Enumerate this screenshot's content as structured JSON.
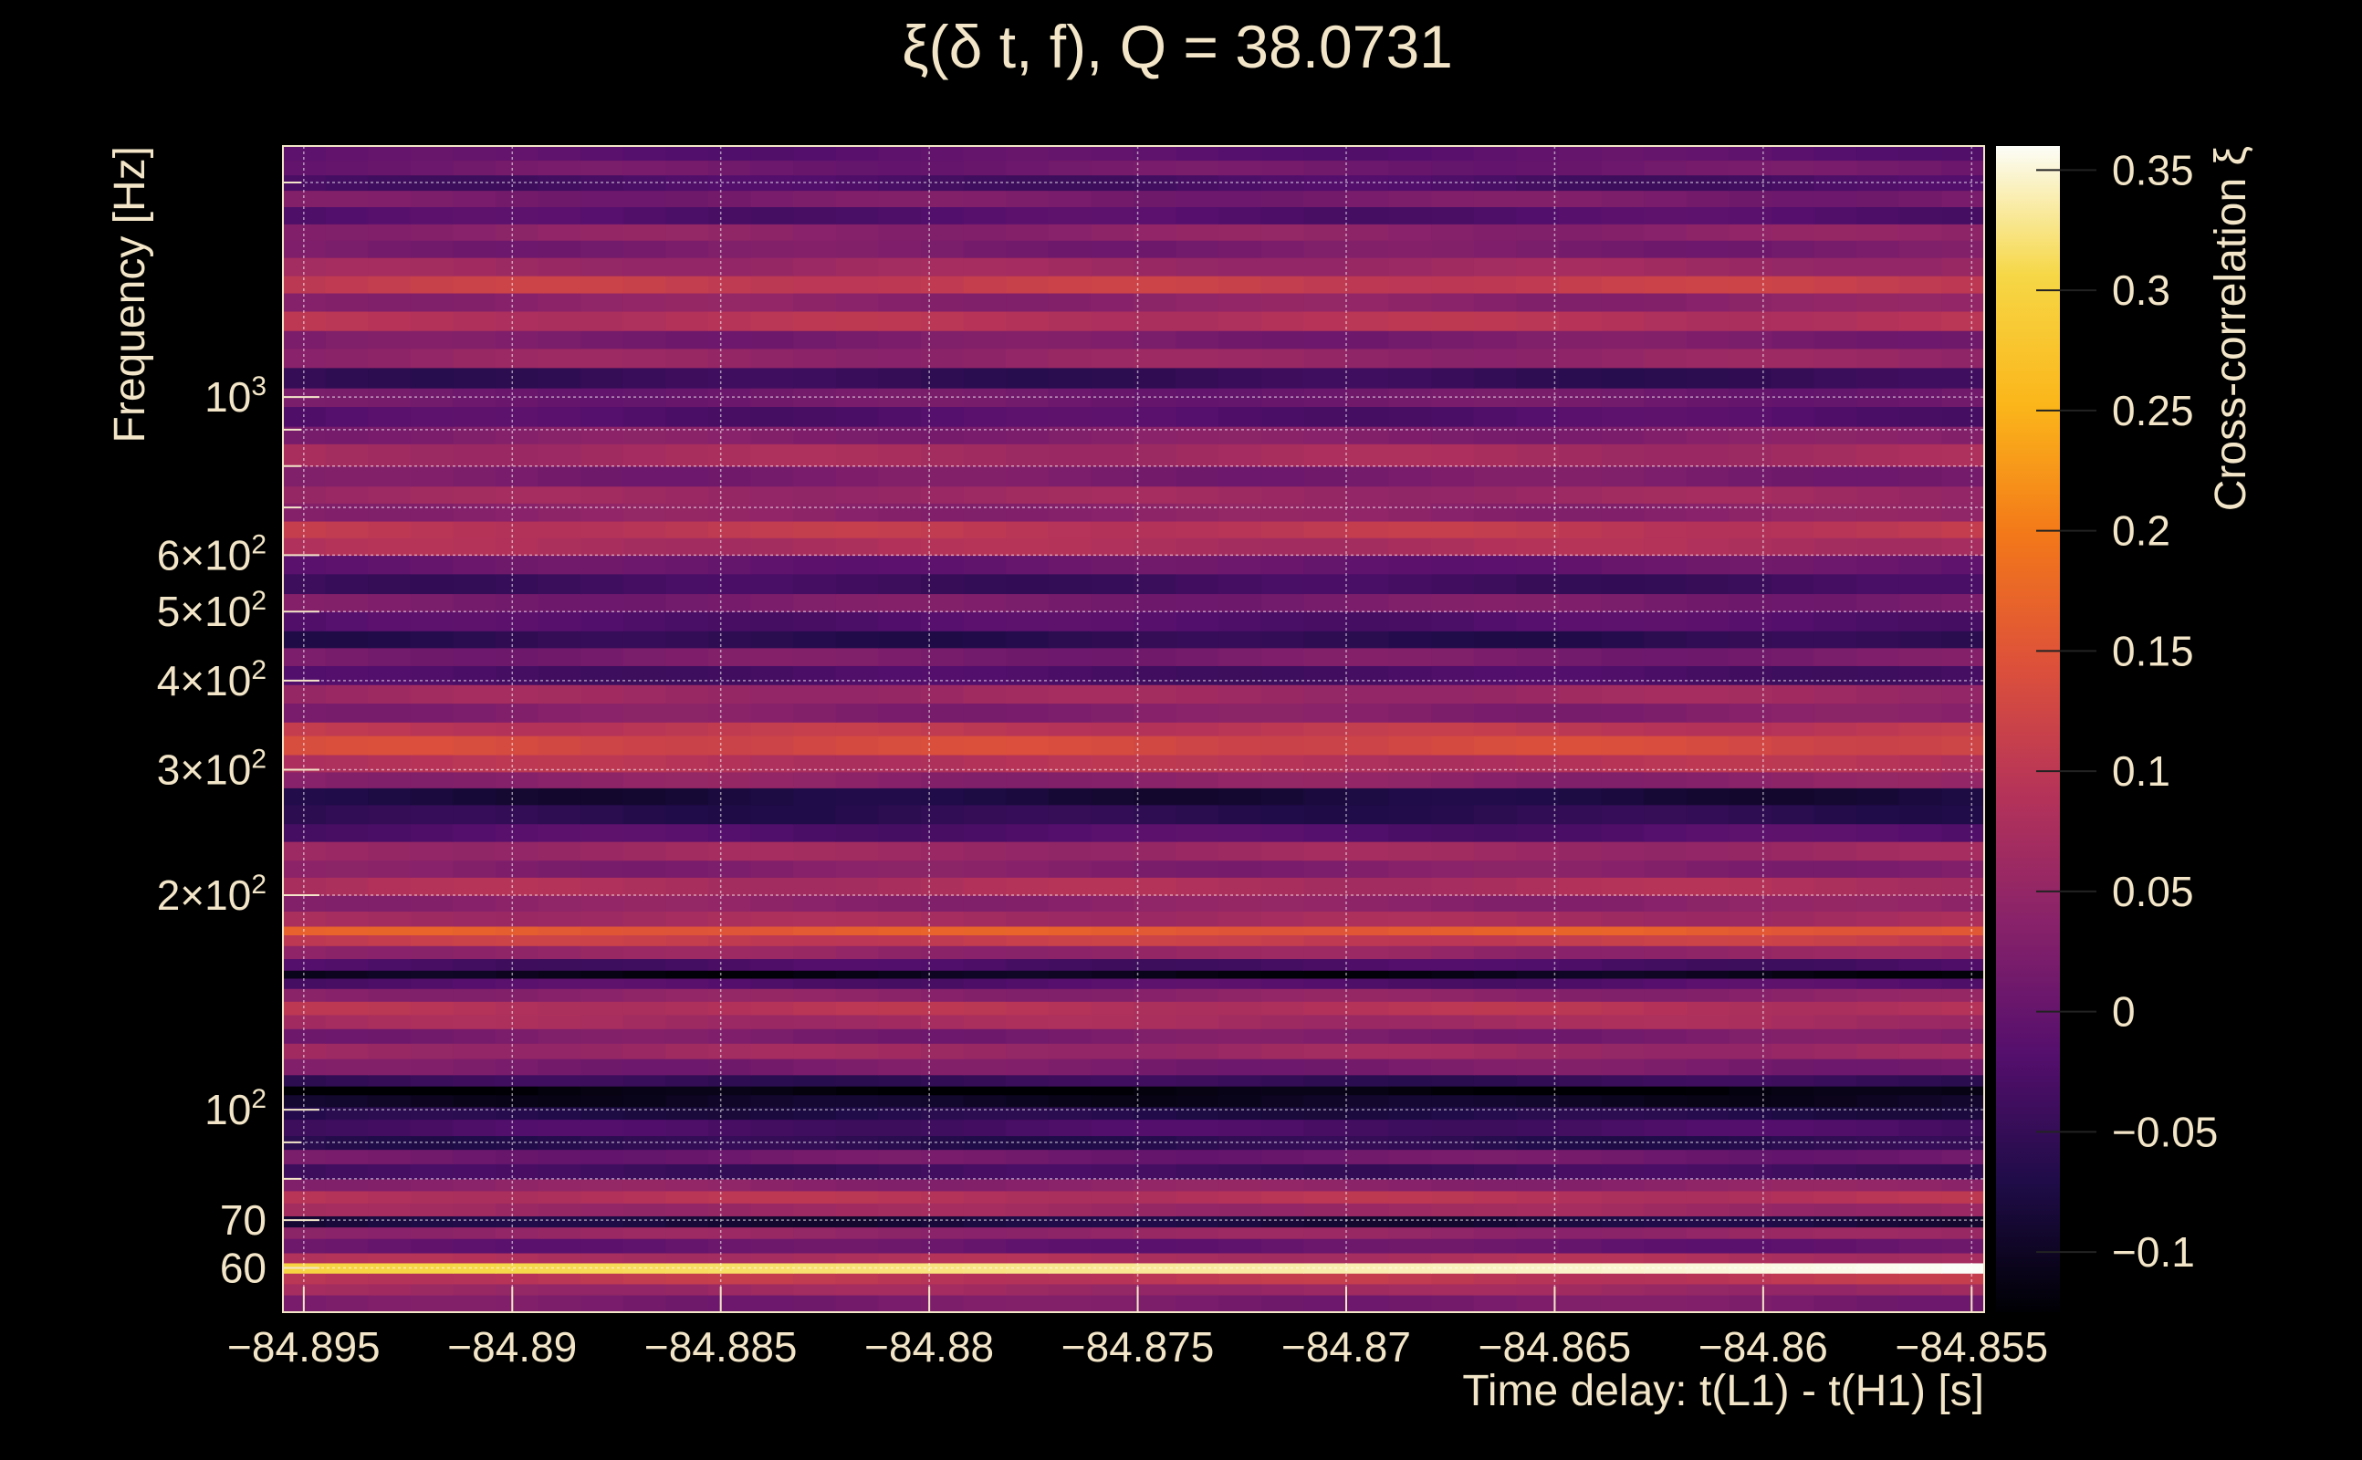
{
  "chart_data": {
    "type": "heatmap",
    "title": "ξ(δ t, f), Q = 38.0731",
    "xlabel": "Time delay: t(L1) - t(H1) [s]",
    "ylabel": "Frequency [Hz]",
    "colorbar_label": "Cross-correlation ξ",
    "xlim": [
      -84.8955,
      -84.8547
    ],
    "x_scale": "linear",
    "ylim": [
      52,
      2250
    ],
    "y_scale": "log",
    "clim": [
      -0.125,
      0.36
    ],
    "grid": true,
    "colormap": [
      "#000004",
      "#1f0c48",
      "#550f6d",
      "#88226a",
      "#b53359",
      "#dd513a",
      "#f37819",
      "#fbb61a",
      "#f6d746",
      "#fcfdf8"
    ],
    "x_ticks": [
      {
        "value": -84.895,
        "label": "−84.895"
      },
      {
        "value": -84.89,
        "label": "−84.89"
      },
      {
        "value": -84.885,
        "label": "−84.885"
      },
      {
        "value": -84.88,
        "label": "−84.88"
      },
      {
        "value": -84.875,
        "label": "−84.875"
      },
      {
        "value": -84.87,
        "label": "−84.87"
      },
      {
        "value": -84.865,
        "label": "−84.865"
      },
      {
        "value": -84.86,
        "label": "−84.86"
      },
      {
        "value": -84.855,
        "label": "−84.855"
      }
    ],
    "y_ticks": [
      {
        "value": 60,
        "label": "60"
      },
      {
        "value": 70,
        "label": "70"
      },
      {
        "value": 100,
        "label": "10",
        "sup": "2"
      },
      {
        "value": 200,
        "label": "2×10",
        "sup": "2"
      },
      {
        "value": 300,
        "label": "3×10",
        "sup": "2"
      },
      {
        "value": 400,
        "label": "4×10",
        "sup": "2"
      },
      {
        "value": 500,
        "label": "5×10",
        "sup": "2"
      },
      {
        "value": 600,
        "label": "6×10",
        "sup": "2"
      },
      {
        "value": 1000,
        "label": "10",
        "sup": "3"
      }
    ],
    "y_minor_ticks": [
      80,
      90,
      700,
      800,
      900,
      2000
    ],
    "colorbar_ticks": [
      {
        "value": -0.1,
        "label": "−0.1"
      },
      {
        "value": -0.05,
        "label": "−0.05"
      },
      {
        "value": 0,
        "label": "0"
      },
      {
        "value": 0.05,
        "label": "0.05"
      },
      {
        "value": 0.1,
        "label": "0.1"
      },
      {
        "value": 0.15,
        "label": "0.15"
      },
      {
        "value": 0.2,
        "label": "0.2"
      },
      {
        "value": 0.25,
        "label": "0.25"
      },
      {
        "value": 0.3,
        "label": "0.3"
      },
      {
        "value": 0.35,
        "label": "0.35"
      }
    ],
    "frequency_bands": [
      {
        "f_low": 52,
        "f_high": 55,
        "xi": 0.02
      },
      {
        "f_low": 55,
        "f_high": 57,
        "xi": 0.06
      },
      {
        "f_low": 57,
        "f_high": 59,
        "xi": 0.1
      },
      {
        "f_low": 59,
        "f_high": 61,
        "xi": 0.3,
        "xi_end": 0.36
      },
      {
        "f_low": 61,
        "f_high": 63,
        "xi": 0.08
      },
      {
        "f_low": 63,
        "f_high": 66,
        "xi": 0.0
      },
      {
        "f_low": 66,
        "f_high": 68.5,
        "xi": 0.05
      },
      {
        "f_low": 68.5,
        "f_high": 71,
        "xi": -0.08
      },
      {
        "f_low": 71,
        "f_high": 74,
        "xi": 0.06
      },
      {
        "f_low": 74,
        "f_high": 77,
        "xi": 0.09
      },
      {
        "f_low": 77,
        "f_high": 80,
        "xi": 0.04
      },
      {
        "f_low": 80,
        "f_high": 84,
        "xi": -0.04
      },
      {
        "f_low": 84,
        "f_high": 88,
        "xi": 0.01
      },
      {
        "f_low": 88,
        "f_high": 92,
        "xi": -0.06
      },
      {
        "f_low": 92,
        "f_high": 97,
        "xi": -0.03
      },
      {
        "f_low": 97,
        "f_high": 101,
        "xi": -0.07
      },
      {
        "f_low": 101,
        "f_high": 105,
        "xi": -0.1
      },
      {
        "f_low": 105,
        "f_high": 108,
        "xi": -0.12
      },
      {
        "f_low": 108,
        "f_high": 112,
        "xi": -0.05
      },
      {
        "f_low": 112,
        "f_high": 118,
        "xi": 0.02
      },
      {
        "f_low": 118,
        "f_high": 124,
        "xi": 0.06
      },
      {
        "f_low": 124,
        "f_high": 130,
        "xi": 0.02
      },
      {
        "f_low": 130,
        "f_high": 136,
        "xi": 0.07
      },
      {
        "f_low": 136,
        "f_high": 142,
        "xi": 0.09
      },
      {
        "f_low": 142,
        "f_high": 148,
        "xi": 0.04
      },
      {
        "f_low": 148,
        "f_high": 153,
        "xi": -0.02
      },
      {
        "f_low": 153,
        "f_high": 157,
        "xi": -0.11
      },
      {
        "f_low": 157,
        "f_high": 163,
        "xi": -0.03
      },
      {
        "f_low": 163,
        "f_high": 170,
        "xi": 0.05
      },
      {
        "f_low": 170,
        "f_high": 176,
        "xi": 0.11
      },
      {
        "f_low": 176,
        "f_high": 181,
        "xi": 0.16
      },
      {
        "f_low": 181,
        "f_high": 190,
        "xi": 0.07
      },
      {
        "f_low": 190,
        "f_high": 200,
        "xi": 0.04
      },
      {
        "f_low": 200,
        "f_high": 212,
        "xi": 0.08
      },
      {
        "f_low": 212,
        "f_high": 224,
        "xi": 0.03
      },
      {
        "f_low": 224,
        "f_high": 238,
        "xi": 0.06
      },
      {
        "f_low": 238,
        "f_high": 252,
        "xi": -0.02
      },
      {
        "f_low": 252,
        "f_high": 268,
        "xi": -0.06
      },
      {
        "f_low": 268,
        "f_high": 283,
        "xi": -0.08
      },
      {
        "f_low": 283,
        "f_high": 298,
        "xi": 0.04
      },
      {
        "f_low": 298,
        "f_high": 315,
        "xi": 0.09
      },
      {
        "f_low": 315,
        "f_high": 335,
        "xi": 0.13
      },
      {
        "f_low": 335,
        "f_high": 350,
        "xi": 0.1
      },
      {
        "f_low": 350,
        "f_high": 372,
        "xi": 0.03
      },
      {
        "f_low": 372,
        "f_high": 395,
        "xi": 0.06
      },
      {
        "f_low": 395,
        "f_high": 420,
        "xi": -0.03
      },
      {
        "f_low": 420,
        "f_high": 445,
        "xi": 0.02
      },
      {
        "f_low": 445,
        "f_high": 470,
        "xi": -0.06
      },
      {
        "f_low": 470,
        "f_high": 500,
        "xi": -0.02
      },
      {
        "f_low": 500,
        "f_high": 530,
        "xi": 0.02
      },
      {
        "f_low": 530,
        "f_high": 565,
        "xi": -0.04
      },
      {
        "f_low": 565,
        "f_high": 600,
        "xi": 0.0
      },
      {
        "f_low": 600,
        "f_high": 635,
        "xi": 0.08
      },
      {
        "f_low": 635,
        "f_high": 670,
        "xi": 0.1
      },
      {
        "f_low": 670,
        "f_high": 710,
        "xi": 0.04
      },
      {
        "f_low": 710,
        "f_high": 750,
        "xi": 0.06
      },
      {
        "f_low": 750,
        "f_high": 800,
        "xi": 0.02
      },
      {
        "f_low": 800,
        "f_high": 860,
        "xi": 0.07
      },
      {
        "f_low": 860,
        "f_high": 910,
        "xi": 0.03
      },
      {
        "f_low": 910,
        "f_high": 970,
        "xi": -0.02
      },
      {
        "f_low": 970,
        "f_high": 1030,
        "xi": 0.01
      },
      {
        "f_low": 1030,
        "f_high": 1100,
        "xi": -0.05
      },
      {
        "f_low": 1100,
        "f_high": 1170,
        "xi": 0.05
      },
      {
        "f_low": 1170,
        "f_high": 1240,
        "xi": 0.02
      },
      {
        "f_low": 1240,
        "f_high": 1320,
        "xi": 0.09
      },
      {
        "f_low": 1320,
        "f_high": 1400,
        "xi": 0.04
      },
      {
        "f_low": 1400,
        "f_high": 1480,
        "xi": 0.11
      },
      {
        "f_low": 1480,
        "f_high": 1570,
        "xi": 0.06
      },
      {
        "f_low": 1570,
        "f_high": 1660,
        "xi": 0.02
      },
      {
        "f_low": 1660,
        "f_high": 1750,
        "xi": 0.04
      },
      {
        "f_low": 1750,
        "f_high": 1850,
        "xi": -0.02
      },
      {
        "f_low": 1850,
        "f_high": 1950,
        "xi": 0.02
      },
      {
        "f_low": 1950,
        "f_high": 2050,
        "xi": -0.03
      },
      {
        "f_low": 2050,
        "f_high": 2150,
        "xi": 0.01
      },
      {
        "f_low": 2150,
        "f_high": 2250,
        "xi": -0.01
      }
    ]
  }
}
